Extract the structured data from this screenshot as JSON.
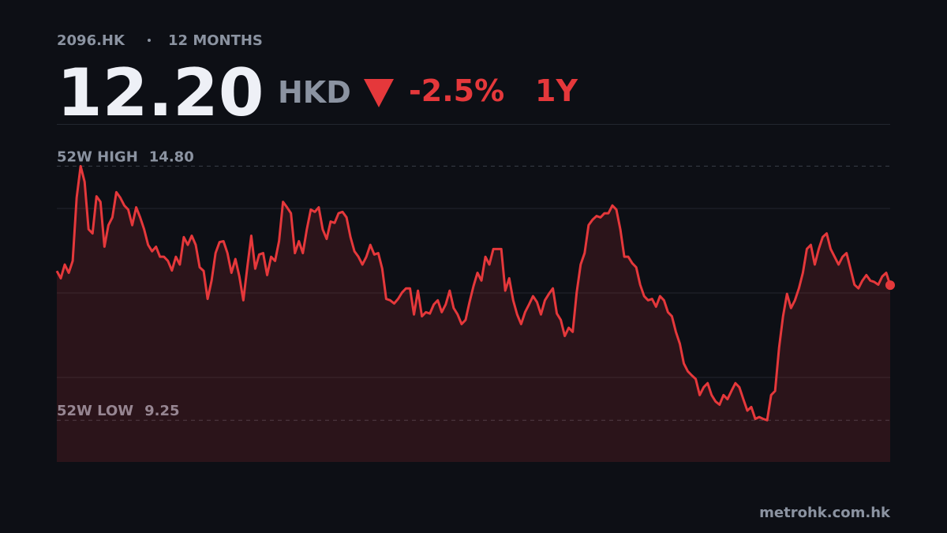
{
  "header": {
    "ticker": "2096.HK",
    "period_label": "12 MONTHS",
    "price": "12.20",
    "currency": "HKD",
    "change": "-2.5%",
    "range": "1Y"
  },
  "chart_data": {
    "type": "line",
    "area": true,
    "ylim": [
      8.34,
      15.72
    ],
    "grid": true,
    "series": [
      {
        "color": "#e5383b",
        "values": [
          12.51,
          12.35,
          12.65,
          12.47,
          12.73,
          14.11,
          14.8,
          14.46,
          13.42,
          13.33,
          14.14,
          14.02,
          13.04,
          13.51,
          13.68,
          14.23,
          14.11,
          13.94,
          13.85,
          13.51,
          13.9,
          13.68,
          13.42,
          13.08,
          12.94,
          13.04,
          12.82,
          12.82,
          12.73,
          12.52,
          12.82,
          12.65,
          13.25,
          13.08,
          13.28,
          13.08,
          12.59,
          12.51,
          11.9,
          12.3,
          12.9,
          13.14,
          13.16,
          12.9,
          12.47,
          12.77,
          12.39,
          11.87,
          12.59,
          13.28,
          12.56,
          12.87,
          12.9,
          12.42,
          12.82,
          12.73,
          13.16,
          14.02,
          13.9,
          13.77,
          12.9,
          13.16,
          12.9,
          13.42,
          13.85,
          13.8,
          13.9,
          13.42,
          13.21,
          13.59,
          13.56,
          13.77,
          13.8,
          13.68,
          13.25,
          12.94,
          12.82,
          12.65,
          12.82,
          13.08,
          12.87,
          12.9,
          12.56,
          11.9,
          11.87,
          11.8,
          11.9,
          12.04,
          12.13,
          12.13,
          11.56,
          12.08,
          11.52,
          11.61,
          11.58,
          11.78,
          11.87,
          11.61,
          11.78,
          12.08,
          11.7,
          11.56,
          11.35,
          11.44,
          11.83,
          12.18,
          12.47,
          12.3,
          12.82,
          12.65,
          12.99,
          12.99,
          12.99,
          12.08,
          12.35,
          11.87,
          11.56,
          11.35,
          11.61,
          11.78,
          11.96,
          11.83,
          11.56,
          11.87,
          12.01,
          12.13,
          11.58,
          11.44,
          11.09,
          11.27,
          11.18,
          12.04,
          12.65,
          12.9,
          13.51,
          13.63,
          13.71,
          13.68,
          13.77,
          13.77,
          13.94,
          13.85,
          13.42,
          12.82,
          12.82,
          12.68,
          12.59,
          12.21,
          11.96,
          11.87,
          11.9,
          11.73,
          11.96,
          11.87,
          11.61,
          11.52,
          11.18,
          10.92,
          10.49,
          10.32,
          10.23,
          10.15,
          9.8,
          9.97,
          10.06,
          9.8,
          9.66,
          9.59,
          9.8,
          9.71,
          9.89,
          10.06,
          9.97,
          9.71,
          9.46,
          9.54,
          9.28,
          9.32,
          9.28,
          9.25,
          9.8,
          9.89,
          10.83,
          11.52,
          12.01,
          11.7,
          11.87,
          12.13,
          12.47,
          12.99,
          13.08,
          12.65,
          12.99,
          13.25,
          13.33,
          12.99,
          12.82,
          12.65,
          12.82,
          12.9,
          12.56,
          12.21,
          12.13,
          12.3,
          12.42,
          12.3,
          12.27,
          12.21,
          12.39,
          12.47,
          12.2
        ]
      }
    ],
    "reference_lines": [
      {
        "name": "52W HIGH",
        "value": 14.8,
        "label": "14.80"
      },
      {
        "name": "52W LOW",
        "value": 9.25,
        "label": "9.25"
      }
    ]
  },
  "footer": {
    "source": "metrohk.com.hk"
  }
}
